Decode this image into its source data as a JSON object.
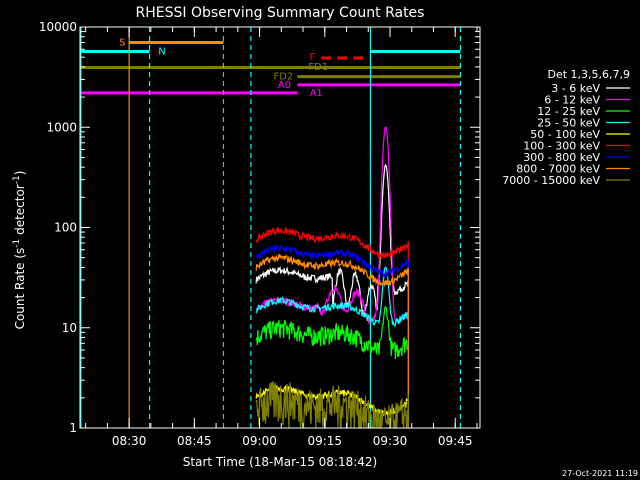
{
  "chart_data": {
    "type": "line",
    "title": "RHESSI Observing Summary Count Rates",
    "xlabel": "Start Time (18-Mar-15 08:18:42)",
    "ylabel_main": "Count Rate (s",
    "ylabel_sup1": "-1",
    "ylabel_mid": " detector",
    "ylabel_sup2": "-1",
    "ylabel_end": ")",
    "x_unit": "minutes since 08:18:42",
    "xlim": [
      0,
      92
    ],
    "ylim": [
      1,
      10000
    ],
    "yscale": "log",
    "xticks": [
      {
        "label": "08:30",
        "t": 11.3
      },
      {
        "label": "08:45",
        "t": 26.3
      },
      {
        "label": "09:00",
        "t": 41.3
      },
      {
        "label": "09:15",
        "t": 56.3
      },
      {
        "label": "09:30",
        "t": 71.3
      },
      {
        "label": "09:45",
        "t": 86.3
      }
    ],
    "yticks": [
      {
        "label": "1",
        "v": 1
      },
      {
        "label": "10",
        "v": 10
      },
      {
        "label": "100",
        "v": 100
      },
      {
        "label": "1000",
        "v": 1000
      },
      {
        "label": "10000",
        "v": 10000
      }
    ],
    "legend_title": "Det 1,3,5,6,7,9",
    "legend_placement": "right",
    "series": [
      {
        "name": "3 - 6 keV",
        "color": "#ffffff"
      },
      {
        "name": "6 - 12 keV",
        "color": "#ff00ff"
      },
      {
        "name": "12 - 25 keV",
        "color": "#00ff00"
      },
      {
        "name": "25 - 50 keV",
        "color": "#00ffff"
      },
      {
        "name": "50 - 100 keV",
        "color": "#ffff00"
      },
      {
        "name": "100 - 300 keV",
        "color": "#ff0000"
      },
      {
        "name": "300 - 800 keV",
        "color": "#0000ff"
      },
      {
        "name": "800 - 7000 keV",
        "color": "#ff8c00"
      },
      {
        "name": "7000 - 15000 keV",
        "color": "#808000"
      }
    ],
    "data_window": {
      "start": 40.5,
      "end": 75.5
    },
    "flag_bars": [
      {
        "label": "S",
        "color": "#ff8c00",
        "start": 11.3,
        "end": 33.0,
        "value": 7000,
        "style": "solid"
      },
      {
        "label": "N",
        "color": "#00ffff",
        "start": 0,
        "end": 16.0,
        "value": 5700,
        "style": "solid"
      },
      {
        "label": "N",
        "color": "#00ffff",
        "start": 66.8,
        "end": 87.5,
        "value": 5700,
        "style": "solid"
      },
      {
        "label": "F",
        "color": "#ff0000",
        "start": 55.5,
        "end": 66.8,
        "value": 4900,
        "style": "dashed"
      },
      {
        "label": "FD1",
        "color": "#808000",
        "start": 0,
        "end": 87.5,
        "value": 3950,
        "style": "solid"
      },
      {
        "label": "FD2",
        "color": "#808000",
        "start": 50.0,
        "end": 87.5,
        "value": 3200,
        "style": "solid"
      },
      {
        "label": "A0",
        "color": "#ff00ff",
        "start": 50.0,
        "end": 87.5,
        "value": 2650,
        "style": "solid"
      },
      {
        "label": "A1",
        "color": "#ff00ff",
        "start": 0,
        "end": 50.0,
        "value": 2200,
        "style": "solid"
      }
    ],
    "flag_labels": [
      {
        "text": "S",
        "color": "#ff8c00",
        "t": 9.0,
        "v": 7000
      },
      {
        "text": "N",
        "color": "#00ffff",
        "t": 18.0,
        "v": 5700
      },
      {
        "text": "F",
        "color": "#ff0000",
        "t": 52.8,
        "v": 5000
      },
      {
        "text": "FD1",
        "color": "#808000",
        "t": 52.5,
        "v": 4000
      },
      {
        "text": "FD2",
        "color": "#808000",
        "t": 44.5,
        "v": 3200
      },
      {
        "text": "A0",
        "color": "#ff00ff",
        "t": 45.5,
        "v": 2650
      },
      {
        "text": "A1",
        "color": "#ff00ff",
        "t": 52.8,
        "v": 2200
      }
    ],
    "vlines": [
      {
        "t": 11.3,
        "color": "#ff8c00",
        "style": "solid"
      },
      {
        "t": 16.0,
        "color": "#00ffff",
        "style": "dashed"
      },
      {
        "t": 33.0,
        "color": "#ff8c00",
        "style": "dashed"
      },
      {
        "t": 39.3,
        "color": "#00ffff",
        "style": "dashed"
      },
      {
        "t": 66.8,
        "color": "#00ffff",
        "style": "solid"
      },
      {
        "t": 87.5,
        "color": "#00ffff",
        "style": "dashed"
      },
      {
        "t": 0.2,
        "color": "#00ffff",
        "style": "solid"
      }
    ]
  },
  "timestamp": "27-Oct-2021 11:19"
}
